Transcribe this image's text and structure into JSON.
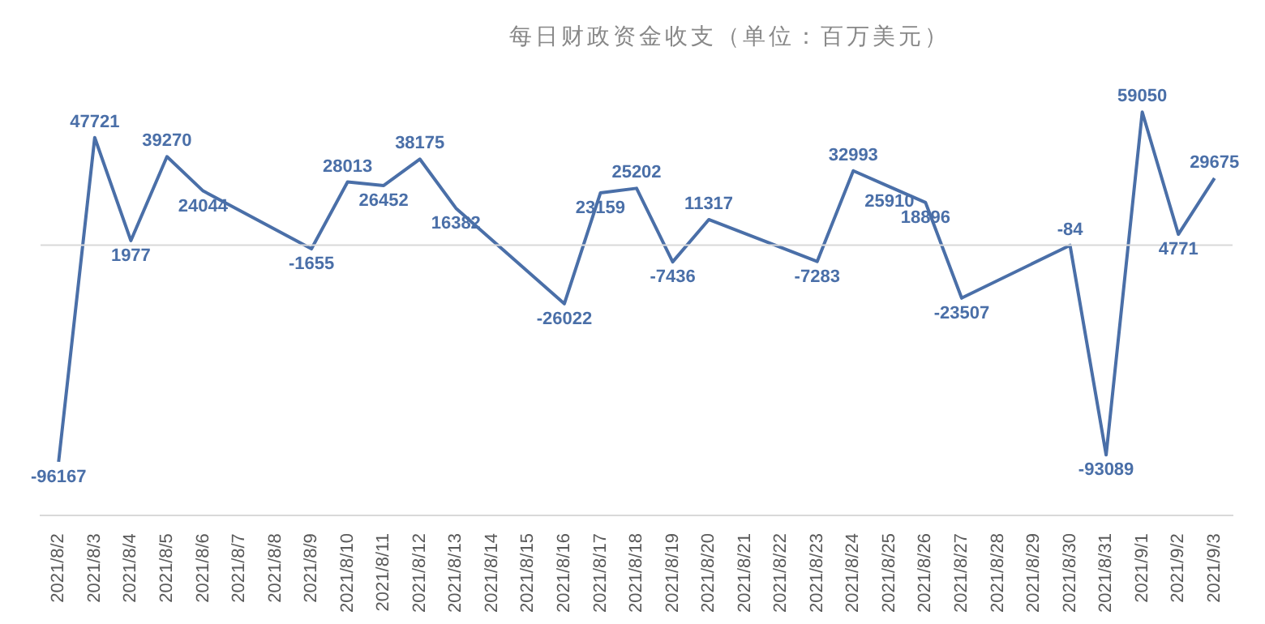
{
  "chart_data": {
    "type": "line",
    "title": "每日财政资金收支（单位：百万美元）",
    "categories": [
      "2021/8/2",
      "2021/8/3",
      "2021/8/4",
      "2021/8/5",
      "2021/8/6",
      "2021/8/7",
      "2021/8/8",
      "2021/8/9",
      "2021/8/10",
      "2021/8/11",
      "2021/8/12",
      "2021/8/13",
      "2021/8/14",
      "2021/8/15",
      "2021/8/16",
      "2021/8/17",
      "2021/8/18",
      "2021/8/19",
      "2021/8/20",
      "2021/8/21",
      "2021/8/22",
      "2021/8/23",
      "2021/8/24",
      "2021/8/25",
      "2021/8/26",
      "2021/8/27",
      "2021/8/28",
      "2021/8/29",
      "2021/8/30",
      "2021/8/31",
      "2021/9/1",
      "2021/9/2",
      "2021/9/3"
    ],
    "values": [
      -96167,
      47721,
      1977,
      39270,
      24044,
      null,
      null,
      -1655,
      28013,
      26452,
      38175,
      16382,
      null,
      null,
      -26022,
      23159,
      25202,
      -7436,
      11317,
      null,
      null,
      -7283,
      32993,
      25910,
      18896,
      -23507,
      null,
      null,
      -84,
      -93089,
      59050,
      4771,
      29675
    ],
    "color": "#4a6fa8",
    "data_labels": true,
    "marker": "none",
    "legend": false,
    "grid": false
  }
}
